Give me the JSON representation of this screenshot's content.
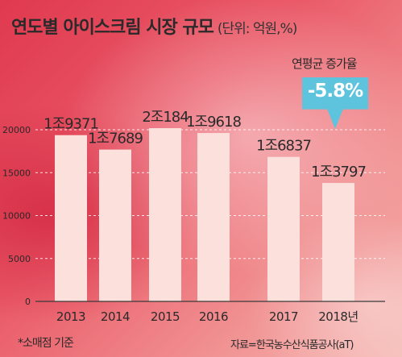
{
  "header": {
    "title": "연도별 아이스크림 시장 규모",
    "unit": "(단위: 억원,%)"
  },
  "cagr": {
    "label": "연평균 증가율",
    "value": "-5.8%"
  },
  "footnote": "*소매점 기준",
  "source": "자료=한국농수산식품공사(aT)",
  "colors": {
    "bar": "#fbe0dc",
    "badge": "#5ec4dd",
    "gridline": "#ffffff"
  },
  "chart_data": {
    "type": "bar",
    "categories": [
      "2013",
      "2014",
      "2015",
      "2016",
      "2017",
      "2018년"
    ],
    "values": [
      19371,
      17689,
      20184,
      19618,
      16837,
      13797
    ],
    "data_labels": [
      "1조9371",
      "1조7689",
      "2조184",
      "1조9618",
      "1조6837",
      "1조3797"
    ],
    "ylim": [
      0,
      20000
    ],
    "yticks": [
      0,
      5000,
      10000,
      15000,
      20000
    ],
    "ytick_labels": [
      "0",
      "5000",
      "10000",
      "15000",
      "20000"
    ],
    "grid": true
  }
}
